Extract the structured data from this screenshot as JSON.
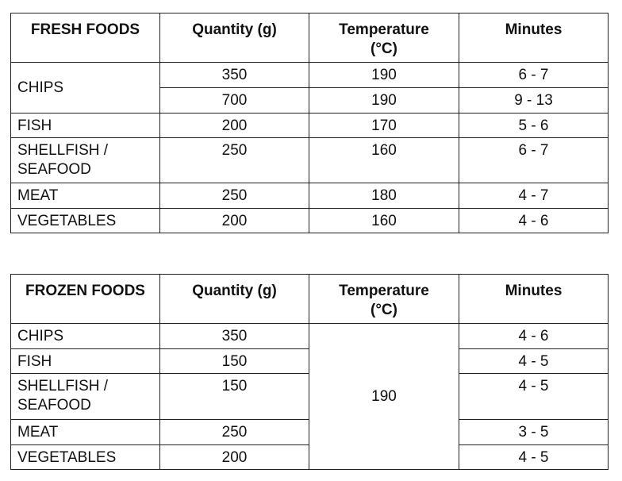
{
  "fresh": {
    "headers": {
      "food": "FRESH FOODS",
      "quantity": "Quantity (g)",
      "temperature_line1": "Temperature",
      "temperature_line2": "(°C)",
      "minutes": "Minutes"
    },
    "rows": {
      "chips": {
        "name": "CHIPS",
        "q1": "350",
        "t1": "190",
        "m1": "6 - 7",
        "q2": "700",
        "t2": "190",
        "m2": "9 - 13"
      },
      "fish": {
        "name": "FISH",
        "q": "200",
        "t": "170",
        "m": "5 - 6"
      },
      "shellfish": {
        "name_line1": "SHELLFISH /",
        "name_line2": "SEAFOOD",
        "q": "250",
        "t": "160",
        "m": "6 - 7"
      },
      "meat": {
        "name": "MEAT",
        "q": "250",
        "t": "180",
        "m": "4 - 7"
      },
      "vegetables": {
        "name": "VEGETABLES",
        "q": "200",
        "t": "160",
        "m": "4 - 6"
      }
    }
  },
  "frozen": {
    "headers": {
      "food": "FROZEN FOODS",
      "quantity": "Quantity (g)",
      "temperature_line1": "Temperature",
      "temperature_line2": "(°C)",
      "minutes": "Minutes"
    },
    "temperature": "190",
    "rows": {
      "chips": {
        "name": "CHIPS",
        "q": "350",
        "m": "4 - 6"
      },
      "fish": {
        "name": "FISH",
        "q": "150",
        "m": "4 - 5"
      },
      "shellfish": {
        "name_line1": "SHELLFISH /",
        "name_line2": "SEAFOOD",
        "q": "150",
        "m": "4 - 5"
      },
      "meat": {
        "name": "MEAT",
        "q": "250",
        "m": "3 - 5"
      },
      "vegetables": {
        "name": "VEGETABLES",
        "q": "200",
        "m": "4 - 5"
      }
    }
  }
}
